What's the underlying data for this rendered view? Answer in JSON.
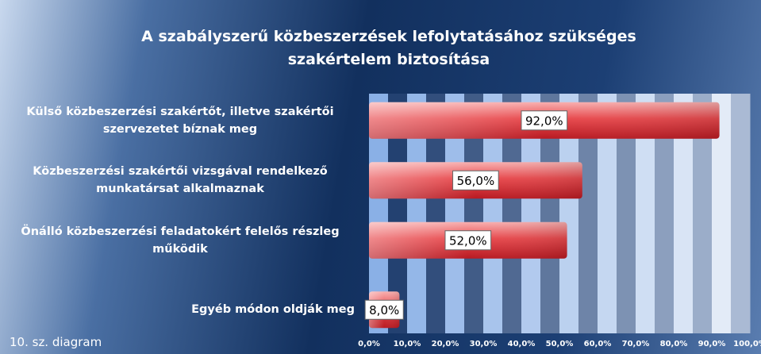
{
  "chart_data": {
    "type": "bar",
    "orientation": "horizontal",
    "title": "A szabályszerű közbeszerzések lefolytatásához szükséges szakértelem biztosítása",
    "categories": [
      "Külső közbeszerzési szakértőt, illetve szakértői szervezetet bíznak meg",
      "Közbeszerzési szakértői vizsgával rendelkező munkatársat alkalmaznak",
      "Önálló közbeszerzési feladatokért felelős részleg működik",
      "Egyéb módon oldják meg"
    ],
    "values": [
      92,
      56,
      52,
      8
    ],
    "value_labels": [
      "92,0%",
      "56,0%",
      "52,0%",
      "8,0%"
    ],
    "color": "#e0343a",
    "xlim": [
      0,
      100
    ],
    "xticks": [
      {
        "value": 0,
        "label": "0,0%"
      },
      {
        "value": 10,
        "label": "10,0%"
      },
      {
        "value": 20,
        "label": "20,0%"
      },
      {
        "value": 30,
        "label": "30,0%"
      },
      {
        "value": 40,
        "label": "40,0%"
      },
      {
        "value": 50,
        "label": "50,0%"
      },
      {
        "value": 60,
        "label": "60,0%"
      },
      {
        "value": 70,
        "label": "70,0%"
      },
      {
        "value": 80,
        "label": "80,0%"
      },
      {
        "value": 90,
        "label": "90,0%"
      },
      {
        "value": 100,
        "label": "100,0%"
      }
    ],
    "footnote": "10. sz. diagram"
  }
}
